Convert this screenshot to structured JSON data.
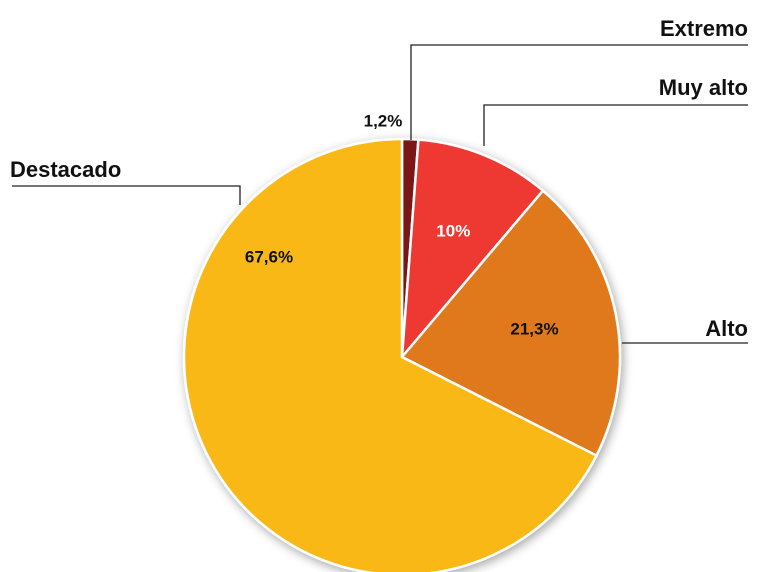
{
  "chart_data": {
    "type": "pie",
    "start_angle_deg": 0,
    "direction": "clockwise",
    "slices": [
      {
        "label": "Extremo",
        "value": 1.2,
        "value_label": "1,2%",
        "color": "#7a1212",
        "value_label_color": "#111111"
      },
      {
        "label": "Muy alto",
        "value": 10.0,
        "value_label": "10%",
        "color": "#ee3730",
        "value_label_color": "#ffffff"
      },
      {
        "label": "Alto",
        "value": 21.3,
        "value_label": "21,3%",
        "color": "#e0791e",
        "value_label_color": "#111111"
      },
      {
        "label": "Destacado",
        "value": 67.6,
        "value_label": "67,6%",
        "color": "#fab817",
        "value_label_color": "#111111"
      }
    ]
  }
}
